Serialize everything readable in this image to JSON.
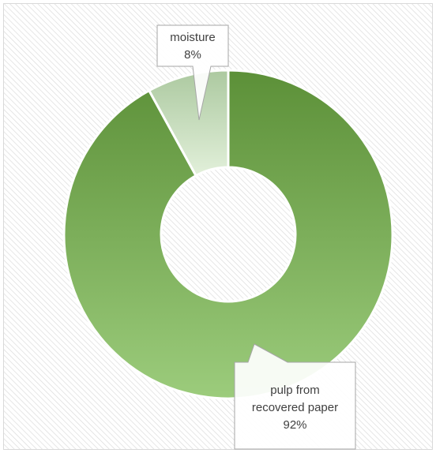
{
  "chart_data": {
    "type": "pie",
    "variant": "donut",
    "title": "",
    "series": [
      {
        "values": [
          {
            "label": "pulp from recovered paper",
            "value": 92,
            "display": "92%"
          },
          {
            "label": "moisture",
            "value": 8,
            "display": "8%"
          }
        ]
      }
    ],
    "legend": "none",
    "background": "diagonal-hatch"
  },
  "callouts": {
    "pulp": {
      "line1": "pulp from",
      "line2": "recovered paper",
      "line3": "92%"
    },
    "moisture": {
      "line1": "moisture",
      "line2": "8%"
    }
  },
  "colors": {
    "pulp_top": "#5c9038",
    "pulp_bottom": "#9ccc7c",
    "moisture_top": "#acccA4",
    "moisture_bottom": "#e2f0da",
    "slice_border": "#ffffff",
    "hatch": "#d9d9d9",
    "frame": "#d9d9d9",
    "callout_fill": "#ffffff",
    "callout_border": "#a6a6a6",
    "callout_text": "#404040"
  }
}
